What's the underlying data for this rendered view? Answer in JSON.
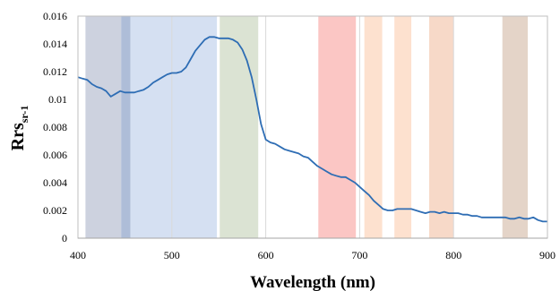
{
  "chart_data": {
    "type": "line",
    "xlabel": "Wavelength (nm)",
    "ylabel": {
      "main": "Rrs",
      "subscript": "sr-1"
    },
    "xlim": [
      400,
      900
    ],
    "ylim": [
      0,
      0.016
    ],
    "x_ticks": [
      "400",
      "500",
      "600",
      "700",
      "800",
      "900"
    ],
    "y_ticks": [
      "0",
      "0.002",
      "0.004",
      "0.006",
      "0.008",
      "0.01",
      "0.012",
      "0.014",
      "0.016"
    ],
    "grid": "vertical gridlines at major x ticks",
    "bands": [
      {
        "start": 408,
        "end": 446,
        "color": "#cdd2df"
      },
      {
        "start": 446,
        "end": 456,
        "color": "#aebdd8"
      },
      {
        "start": 456,
        "end": 548,
        "color": "#d5e0f2"
      },
      {
        "start": 551,
        "end": 592,
        "color": "#dbe3d3"
      },
      {
        "start": 656,
        "end": 696,
        "color": "#fbc6c4"
      },
      {
        "start": 705,
        "end": 724,
        "color": "#fde1cf"
      },
      {
        "start": 737,
        "end": 755,
        "color": "#fde1cf"
      },
      {
        "start": 774,
        "end": 800,
        "color": "#f7d9c8"
      },
      {
        "start": 852,
        "end": 879,
        "color": "#e4d4c8"
      }
    ],
    "series": [
      {
        "color": "#2e6db4",
        "points": [
          [
            400,
            0.0116
          ],
          [
            405,
            0.0115
          ],
          [
            410,
            0.0114
          ],
          [
            415,
            0.0111
          ],
          [
            420,
            0.0109
          ],
          [
            425,
            0.0108
          ],
          [
            430,
            0.0106
          ],
          [
            435,
            0.0102
          ],
          [
            440,
            0.0104
          ],
          [
            445,
            0.0106
          ],
          [
            450,
            0.0105
          ],
          [
            455,
            0.0105
          ],
          [
            460,
            0.0105
          ],
          [
            465,
            0.0106
          ],
          [
            470,
            0.0107
          ],
          [
            475,
            0.0109
          ],
          [
            480,
            0.0112
          ],
          [
            485,
            0.0114
          ],
          [
            490,
            0.0116
          ],
          [
            495,
            0.0118
          ],
          [
            500,
            0.0119
          ],
          [
            505,
            0.0119
          ],
          [
            510,
            0.012
          ],
          [
            515,
            0.0123
          ],
          [
            520,
            0.0129
          ],
          [
            525,
            0.0135
          ],
          [
            530,
            0.0139
          ],
          [
            535,
            0.0143
          ],
          [
            540,
            0.0145
          ],
          [
            545,
            0.0145
          ],
          [
            550,
            0.0144
          ],
          [
            555,
            0.0144
          ],
          [
            560,
            0.0144
          ],
          [
            565,
            0.0143
          ],
          [
            570,
            0.0141
          ],
          [
            575,
            0.0136
          ],
          [
            580,
            0.0128
          ],
          [
            585,
            0.0116
          ],
          [
            590,
            0.01
          ],
          [
            595,
            0.0082
          ],
          [
            600,
            0.0071
          ],
          [
            605,
            0.0069
          ],
          [
            610,
            0.0068
          ],
          [
            615,
            0.0066
          ],
          [
            620,
            0.0064
          ],
          [
            625,
            0.0063
          ],
          [
            630,
            0.0062
          ],
          [
            635,
            0.0061
          ],
          [
            640,
            0.0059
          ],
          [
            645,
            0.0058
          ],
          [
            650,
            0.0055
          ],
          [
            655,
            0.0052
          ],
          [
            660,
            0.005
          ],
          [
            665,
            0.0048
          ],
          [
            670,
            0.0046
          ],
          [
            675,
            0.0045
          ],
          [
            680,
            0.0044
          ],
          [
            685,
            0.0044
          ],
          [
            690,
            0.0042
          ],
          [
            695,
            0.004
          ],
          [
            700,
            0.0037
          ],
          [
            705,
            0.0034
          ],
          [
            710,
            0.0031
          ],
          [
            715,
            0.0027
          ],
          [
            720,
            0.0024
          ],
          [
            725,
            0.0021
          ],
          [
            730,
            0.002
          ],
          [
            735,
            0.002
          ],
          [
            740,
            0.0021
          ],
          [
            745,
            0.0021
          ],
          [
            750,
            0.0021
          ],
          [
            755,
            0.0021
          ],
          [
            760,
            0.002
          ],
          [
            765,
            0.0019
          ],
          [
            770,
            0.0018
          ],
          [
            775,
            0.0019
          ],
          [
            780,
            0.0019
          ],
          [
            785,
            0.0018
          ],
          [
            790,
            0.0019
          ],
          [
            795,
            0.0018
          ],
          [
            800,
            0.0018
          ],
          [
            805,
            0.0018
          ],
          [
            810,
            0.0017
          ],
          [
            815,
            0.0017
          ],
          [
            820,
            0.0016
          ],
          [
            825,
            0.0016
          ],
          [
            830,
            0.0015
          ],
          [
            835,
            0.0015
          ],
          [
            840,
            0.0015
          ],
          [
            845,
            0.0015
          ],
          [
            850,
            0.0015
          ],
          [
            855,
            0.0015
          ],
          [
            860,
            0.0014
          ],
          [
            865,
            0.0014
          ],
          [
            870,
            0.0015
          ],
          [
            875,
            0.0014
          ],
          [
            880,
            0.0014
          ],
          [
            885,
            0.0015
          ],
          [
            890,
            0.0013
          ],
          [
            895,
            0.0012
          ],
          [
            900,
            0.0012
          ]
        ]
      }
    ]
  }
}
